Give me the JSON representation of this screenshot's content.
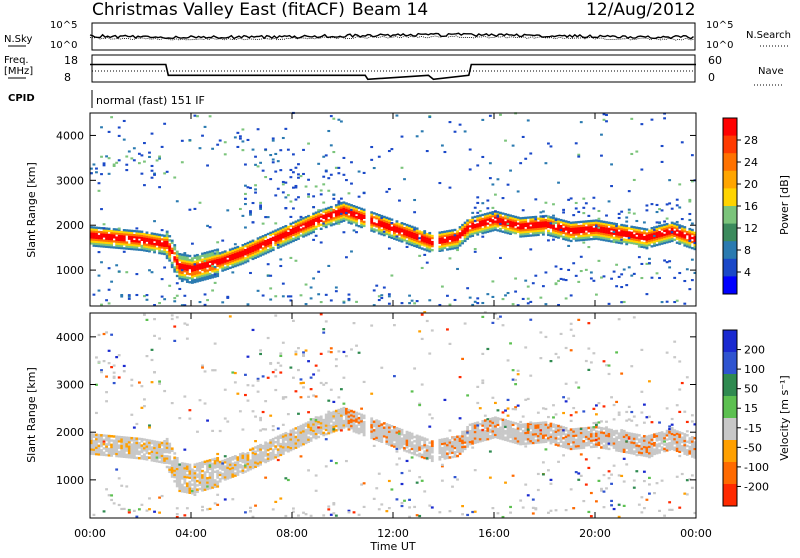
{
  "header": {
    "station": "Christmas Valley East (fitACF)",
    "beam": "Beam 14",
    "date": "12/Aug/2012"
  },
  "panels": {
    "noise": {
      "left_label": "N.Sky",
      "right_label": "N.Search",
      "left_ticks": [
        "10^5",
        "10^0"
      ],
      "right_ticks": [
        "10^5",
        "10^0"
      ]
    },
    "freq": {
      "left_label_1": "Freq.",
      "left_label_2": "[MHz]",
      "right_label": "Nave",
      "left_ticks": [
        "18",
        "8"
      ],
      "right_ticks": [
        "60",
        "0"
      ]
    },
    "cpid": {
      "label": "CPID",
      "value": "normal (fast) 151 IF"
    }
  },
  "power_colorbar": {
    "label": "Power [dB]",
    "ticks": [
      "28",
      "24",
      "20",
      "16",
      "12",
      "8",
      "4"
    ],
    "colors": [
      "#ff0000",
      "#ff3a00",
      "#ff7200",
      "#ffa500",
      "#ffd400",
      "#7bc47b",
      "#3b8a5c",
      "#2a7ab0",
      "#1a48c8",
      "#0000ff"
    ]
  },
  "velocity_colorbar": {
    "label": "Velocity [m s⁻¹]",
    "ticks": [
      "200",
      "100",
      "50",
      "15",
      "-15",
      "-50",
      "-100",
      "-200"
    ],
    "colors": [
      "#1a2ad0",
      "#2f54d0",
      "#2f8a50",
      "#5cc050",
      "#c8c8c8",
      "#ffa000",
      "#ff6a00",
      "#ff2a00"
    ]
  },
  "axes": {
    "xlabel": "Time UT",
    "ylabel": "Slant Range [km]",
    "x_ticks": [
      "00:00",
      "04:00",
      "08:00",
      "12:00",
      "16:00",
      "20:00",
      "00:00"
    ],
    "y_ticks": [
      "4000",
      "3000",
      "2000",
      "1000"
    ]
  },
  "chart_data": [
    {
      "type": "heatmap",
      "title": "Power",
      "xlabel": "Time UT",
      "ylabel": "Slant Range [km]",
      "xlim_hours": [
        0,
        24
      ],
      "ylim_km": [
        200,
        4500
      ],
      "colorbar": "Power [dB]",
      "main_band": [
        {
          "t": 0,
          "r": 1750
        },
        {
          "t": 1,
          "r": 1700
        },
        {
          "t": 2,
          "r": 1650
        },
        {
          "t": 3,
          "r": 1550
        },
        {
          "t": 3.5,
          "r": 1050
        },
        {
          "t": 4,
          "r": 1000
        },
        {
          "t": 5,
          "r": 1150
        },
        {
          "t": 6,
          "r": 1350
        },
        {
          "t": 7,
          "r": 1600
        },
        {
          "t": 8,
          "r": 1850
        },
        {
          "t": 9,
          "r": 2100
        },
        {
          "t": 10,
          "r": 2300
        },
        {
          "t": 13.5,
          "r": 1600
        },
        {
          "t": 14.5,
          "r": 1700
        },
        {
          "t": 15,
          "r": 1950
        },
        {
          "t": 16,
          "r": 2100
        },
        {
          "t": 17,
          "r": 1950
        },
        {
          "t": 18,
          "r": 2000
        },
        {
          "t": 19,
          "r": 1850
        },
        {
          "t": 20,
          "r": 1900
        },
        {
          "t": 21,
          "r": 1800
        },
        {
          "t": 22,
          "r": 1700
        },
        {
          "t": 23,
          "r": 1850
        },
        {
          "t": 24,
          "r": 1650
        }
      ]
    },
    {
      "type": "heatmap",
      "title": "Velocity",
      "xlabel": "Time UT",
      "ylabel": "Slant Range [km]",
      "xlim_hours": [
        0,
        24
      ],
      "ylim_km": [
        200,
        4500
      ],
      "colorbar": "Velocity [m s-1]"
    },
    {
      "type": "line",
      "title": "Frequency",
      "ylim_mhz": [
        8,
        18
      ],
      "series": [
        {
          "name": "Freq.",
          "x": [
            0,
            3,
            3.1,
            10.9,
            11,
            13.4,
            13.6,
            15,
            15.1,
            24
          ],
          "y": [
            14.5,
            14.5,
            10.5,
            10.5,
            9,
            10.5,
            9,
            10.5,
            14.5,
            14.5
          ]
        }
      ]
    }
  ]
}
